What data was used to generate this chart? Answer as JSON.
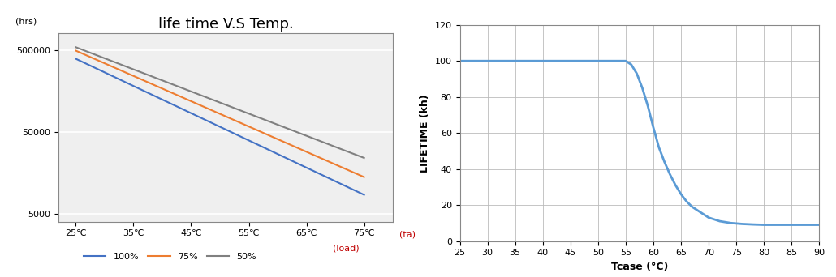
{
  "chart1": {
    "title": "life time V.S Temp.",
    "ylabel": "(hrs)",
    "xlabel_suffix": "(ta)",
    "legend_suffix": "(load)",
    "x_ticks": [
      25,
      35,
      45,
      55,
      65,
      75
    ],
    "x_tick_labels": [
      "25℃",
      "35℃",
      "45℃",
      "55℃",
      "65℃",
      "75℃"
    ],
    "y_ticks": [
      5000,
      50000,
      500000
    ],
    "lines": {
      "100%": {
        "x": [
          25,
          75
        ],
        "y": [
          390000,
          8500
        ],
        "color": "#4472C4",
        "label": "100%"
      },
      "75%": {
        "x": [
          25,
          75
        ],
        "y": [
          490000,
          14000
        ],
        "color": "#ED7D31",
        "label": "75%"
      },
      "50%": {
        "x": [
          25,
          75
        ],
        "y": [
          540000,
          24000
        ],
        "color": "#808080",
        "label": "50%"
      }
    },
    "background_color": "#efefef",
    "grid_color": "#ffffff"
  },
  "chart2": {
    "xlabel": "Tcase (°C)",
    "ylabel": "LIFETIME (kh)",
    "x_ticks": [
      25,
      30,
      35,
      40,
      45,
      50,
      55,
      60,
      65,
      70,
      75,
      80,
      85,
      90
    ],
    "y_ticks": [
      0,
      20,
      40,
      60,
      80,
      100,
      120
    ],
    "curve_x": [
      25,
      30,
      35,
      40,
      45,
      50,
      55,
      55.5,
      56,
      57,
      58,
      59,
      60,
      61,
      62,
      63,
      64,
      65,
      66,
      67,
      68,
      69,
      70,
      72,
      74,
      76,
      78,
      80,
      82,
      85,
      88,
      90
    ],
    "curve_y": [
      100,
      100,
      100,
      100,
      100,
      100,
      100,
      99,
      98,
      93,
      85,
      75,
      63,
      52,
      44,
      37,
      31,
      26,
      22,
      19,
      17,
      15,
      13,
      11,
      10,
      9.5,
      9.2,
      9,
      9,
      9,
      9,
      9
    ],
    "line_color": "#5B9BD5",
    "background_color": "#ffffff"
  }
}
